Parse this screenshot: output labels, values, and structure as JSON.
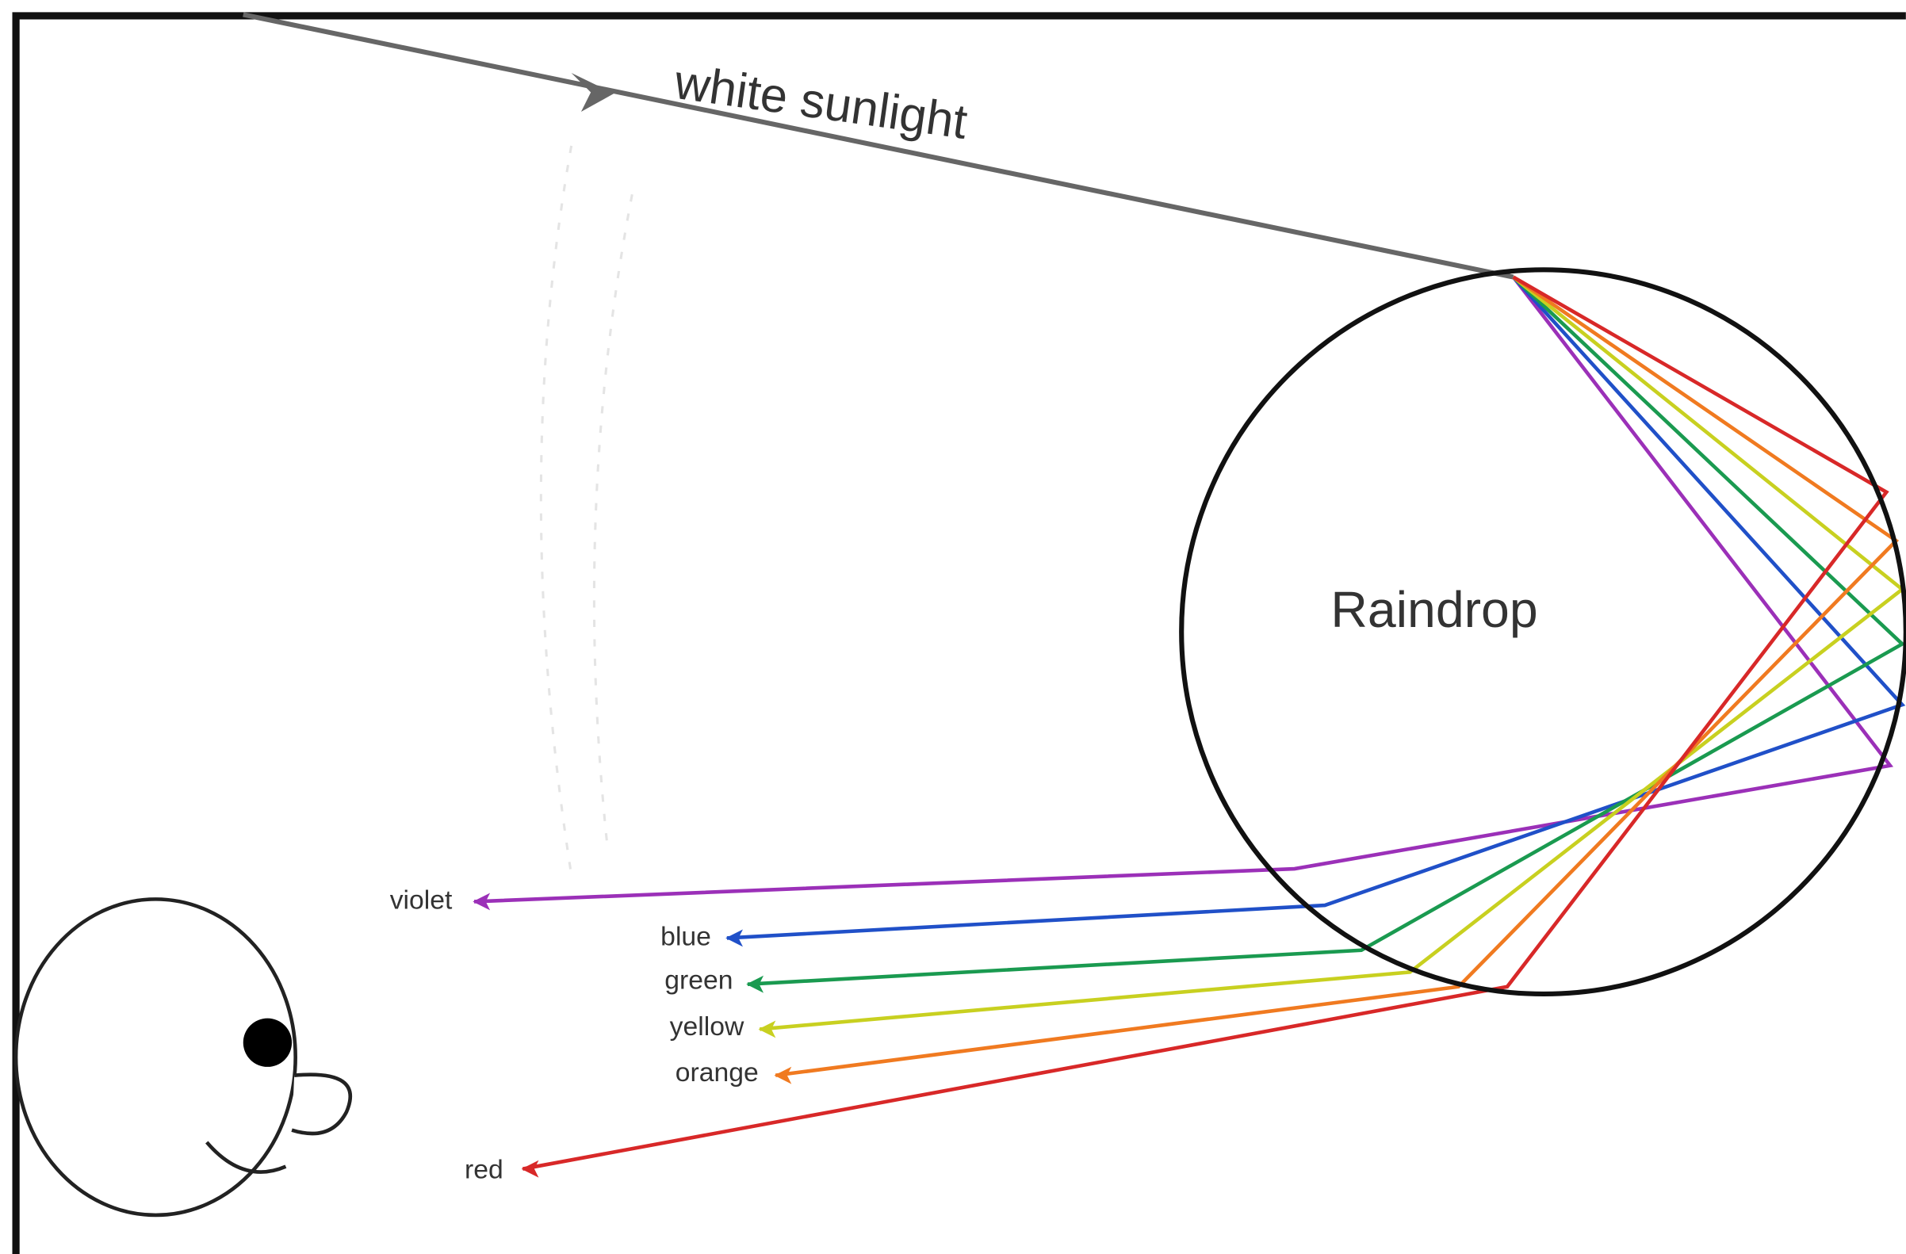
{
  "sunlight_label": "white sunlight",
  "raindrop_label": "Raindrop",
  "rays": [
    {
      "label": "violet",
      "color": "#9b30b8"
    },
    {
      "label": "blue",
      "color": "#2050c8"
    },
    {
      "label": "green",
      "color": "#1a9a50"
    },
    {
      "label": "yellow",
      "color": "#c8d020"
    },
    {
      "label": "orange",
      "color": "#f07a20"
    },
    {
      "label": "red",
      "color": "#d82828"
    }
  ]
}
